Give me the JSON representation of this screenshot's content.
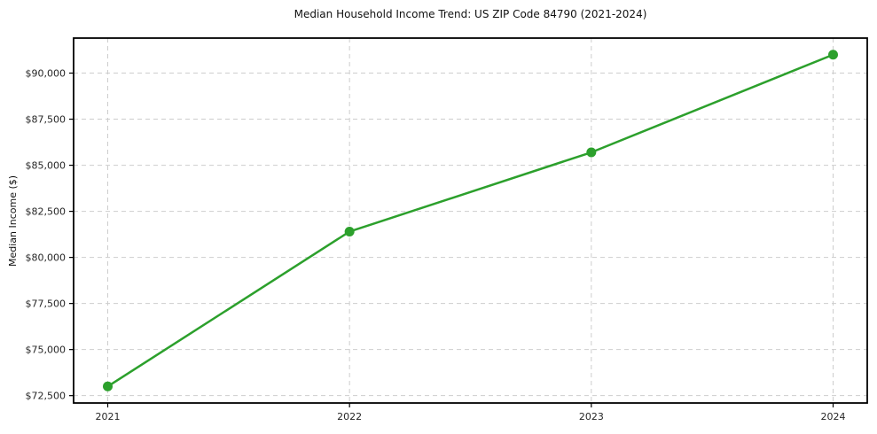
{
  "chart_data": {
    "type": "line",
    "title": "Median Household Income Trend: US ZIP Code 84790 (2021-2024)",
    "xlabel": "",
    "ylabel": "Median Income ($)",
    "categories": [
      "2021",
      "2022",
      "2023",
      "2024"
    ],
    "values": [
      73000,
      81400,
      85700,
      91000
    ],
    "ylim": [
      72100,
      91900
    ],
    "yticks": [
      72500,
      75000,
      77500,
      80000,
      82500,
      85000,
      87500,
      90000
    ],
    "ytick_labels": [
      "$72,500",
      "$75,000",
      "$77,500",
      "$80,000",
      "$82,500",
      "$85,000",
      "$87,500",
      "$90,000"
    ],
    "grid": true,
    "grid_linestyle": "dashed",
    "legend_position": "none",
    "marker": "circle",
    "colors": {
      "line": "#2ca02c",
      "grid": "#cdcdcd",
      "spine": "#000000",
      "tick_label": "#262626",
      "background": "#ffffff"
    }
  }
}
